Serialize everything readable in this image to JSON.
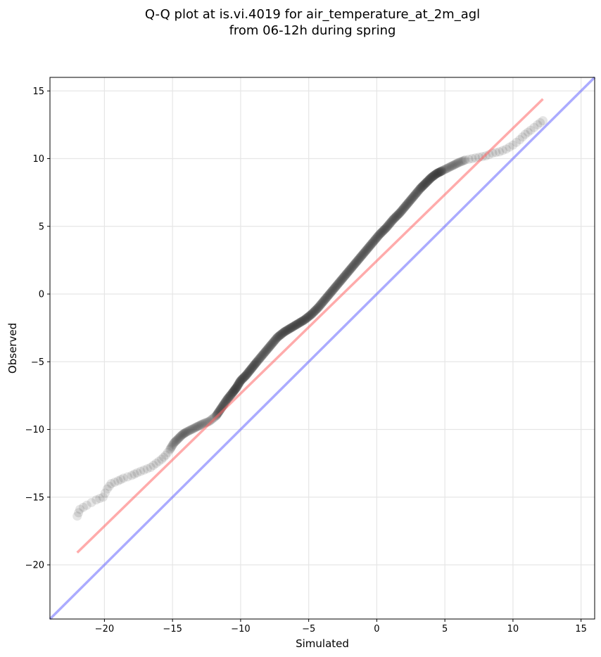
{
  "chart_data": {
    "type": "scatter",
    "title_lines": [
      "Q-Q plot at is.vi.4019 for air_temperature_at_2m_agl",
      "from 06-12h during spring"
    ],
    "xlabel": "Simulated",
    "ylabel": "Observed",
    "xlim": [
      -24,
      16
    ],
    "ylim": [
      -24,
      16
    ],
    "x_ticks": [
      -20,
      -15,
      -10,
      -5,
      0,
      5,
      10,
      15
    ],
    "y_ticks": [
      -20,
      -15,
      -10,
      -5,
      0,
      5,
      10,
      15
    ],
    "x_tick_labels": [
      "−20",
      "−15",
      "−10",
      "−5",
      "0",
      "5",
      "10",
      "15"
    ],
    "y_tick_labels": [
      "−20",
      "−15",
      "−10",
      "−5",
      "0",
      "5",
      "10",
      "15"
    ],
    "grid": true,
    "colors": {
      "points": "#333333",
      "fit_line": "#ff6666",
      "identity_line": "#6666ff",
      "grid": "#e6e6e6"
    },
    "series": [
      {
        "kind": "points",
        "x": [
          -22.0,
          -21.8,
          -21.3,
          -20.6,
          -20.1,
          -19.8,
          -19.5,
          -19.0,
          -18.6,
          -18.0,
          -17.6,
          -17.1,
          -16.6,
          -16.2,
          -15.8,
          -15.5,
          -15.2,
          -14.9,
          -14.6,
          -14.3,
          -14.0,
          -13.6,
          -13.2,
          -12.8,
          -12.3,
          -11.8,
          -11.4,
          -11.0,
          -10.6,
          -10.3,
          -10.0,
          -9.6,
          -9.2,
          -8.8,
          -8.3,
          -7.8,
          -7.3,
          -6.8,
          -6.3,
          -5.8,
          -5.3,
          -4.8,
          -4.3,
          -3.8,
          -3.3,
          -2.8,
          -2.3,
          -1.8,
          -1.3,
          -0.8,
          -0.3,
          0.2,
          0.7,
          1.2,
          1.7,
          2.2,
          2.7,
          3.2,
          3.6,
          4.0,
          4.4,
          4.8,
          5.2,
          5.6,
          6.0,
          6.5,
          7.0,
          7.5,
          8.0,
          8.5,
          9.0,
          9.5,
          10.0,
          10.5,
          10.9,
          11.3,
          11.8,
          12.2
        ],
        "y": [
          -16.4,
          -15.9,
          -15.6,
          -15.2,
          -15.0,
          -14.4,
          -14.0,
          -13.8,
          -13.6,
          -13.4,
          -13.2,
          -13.0,
          -12.8,
          -12.5,
          -12.2,
          -11.9,
          -11.5,
          -11.0,
          -10.7,
          -10.4,
          -10.2,
          -10.0,
          -9.8,
          -9.6,
          -9.4,
          -9.0,
          -8.4,
          -7.8,
          -7.3,
          -6.9,
          -6.4,
          -6.0,
          -5.5,
          -5.0,
          -4.4,
          -3.8,
          -3.2,
          -2.8,
          -2.5,
          -2.2,
          -1.9,
          -1.5,
          -1.0,
          -0.4,
          0.2,
          0.8,
          1.4,
          2.0,
          2.6,
          3.2,
          3.8,
          4.4,
          4.9,
          5.5,
          6.0,
          6.6,
          7.2,
          7.8,
          8.2,
          8.6,
          8.9,
          9.1,
          9.3,
          9.5,
          9.7,
          9.9,
          10.0,
          10.1,
          10.2,
          10.4,
          10.5,
          10.7,
          11.0,
          11.4,
          11.8,
          12.1,
          12.5,
          12.8
        ]
      },
      {
        "kind": "fit_line",
        "x": [
          -22.0,
          12.2
        ],
        "y": [
          -19.1,
          14.4
        ]
      },
      {
        "kind": "identity_line",
        "x": [
          -24,
          16
        ],
        "y": [
          -24,
          16
        ]
      }
    ]
  }
}
